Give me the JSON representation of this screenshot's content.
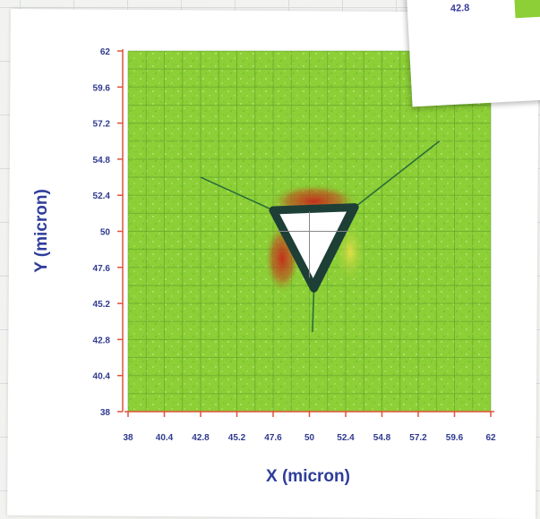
{
  "chart_data": {
    "type": "heatmap",
    "xlabel": "X (micron)",
    "ylabel": "Y (micron)",
    "x_ticks": [
      "38",
      "40.4",
      "42.8",
      "45.2",
      "47.6",
      "50",
      "52.4",
      "54.8",
      "57.2",
      "59.6",
      "62"
    ],
    "y_ticks": [
      "62",
      "59.6",
      "57.2",
      "54.8",
      "52.4",
      "50",
      "47.6",
      "45.2",
      "42.8",
      "40.4",
      "38"
    ],
    "xlim": [
      38,
      62
    ],
    "ylim": [
      38,
      62
    ],
    "grid": true,
    "indent": {
      "shape": "triangle",
      "vertices": [
        [
          47.6,
          51.4
        ],
        [
          53.0,
          51.6
        ],
        [
          50.3,
          46.2
        ]
      ],
      "center": [
        50.0,
        50.0
      ]
    },
    "colors": {
      "surface": "#8ccf36",
      "edge": "#1d3f36",
      "pileup": "#c6271a",
      "highlight": "#e3d94a",
      "indent_void": "#ffffff",
      "axis": "#e0503a",
      "text": "#2f3a8f"
    }
  },
  "inset": {
    "value_label": "42.8",
    "swatch_color": "#8ccf36"
  }
}
